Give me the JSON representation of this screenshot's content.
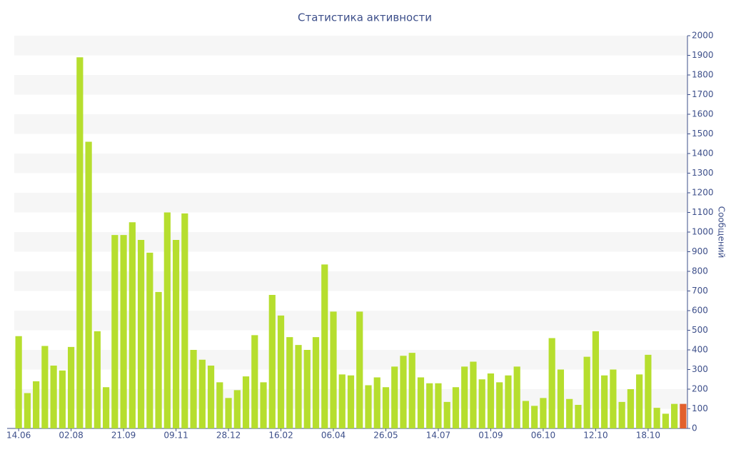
{
  "chart_data": {
    "type": "bar",
    "title": "Статистика активности",
    "y_axis_label": "Сообщений",
    "categories": [
      "14.06",
      null,
      null,
      null,
      null,
      null,
      "02.08",
      null,
      null,
      null,
      null,
      null,
      "21.09",
      null,
      null,
      null,
      null,
      null,
      "09.11",
      null,
      null,
      null,
      null,
      null,
      "28.12",
      null,
      null,
      null,
      null,
      null,
      "16.02",
      null,
      null,
      null,
      null,
      null,
      "06.04",
      null,
      null,
      null,
      null,
      null,
      "26.05",
      null,
      null,
      null,
      null,
      null,
      "14.07",
      null,
      null,
      null,
      null,
      null,
      "01.09",
      null,
      null,
      null,
      null,
      null,
      "06.10",
      null,
      null,
      null,
      null,
      null,
      "12.10",
      null,
      null,
      null,
      null,
      null,
      "18.10",
      null,
      null,
      null,
      null
    ],
    "values": [
      470,
      180,
      240,
      420,
      320,
      295,
      415,
      1890,
      1460,
      495,
      210,
      985,
      985,
      1050,
      960,
      895,
      695,
      1100,
      960,
      1095,
      400,
      350,
      320,
      235,
      155,
      195,
      265,
      475,
      235,
      680,
      575,
      465,
      425,
      400,
      465,
      835,
      595,
      275,
      270,
      595,
      220,
      260,
      210,
      315,
      370,
      385,
      260,
      230,
      230,
      135,
      210,
      315,
      340,
      250,
      280,
      235,
      270,
      315,
      140,
      115,
      155,
      460,
      300,
      150,
      120,
      365,
      495,
      270,
      300,
      135,
      200,
      275,
      375,
      105,
      75,
      125,
      125
    ],
    "color": "#b6de2e",
    "last_color": "#e2602c",
    "ylim": [
      0,
      2000
    ],
    "yticks": [
      0,
      100,
      200,
      300,
      400,
      500,
      600,
      700,
      800,
      900,
      1000,
      1100,
      1200,
      1300,
      1400,
      1500,
      1600,
      1700,
      1800,
      1900,
      2000
    ],
    "grid": true,
    "y_axis_side": "right"
  }
}
